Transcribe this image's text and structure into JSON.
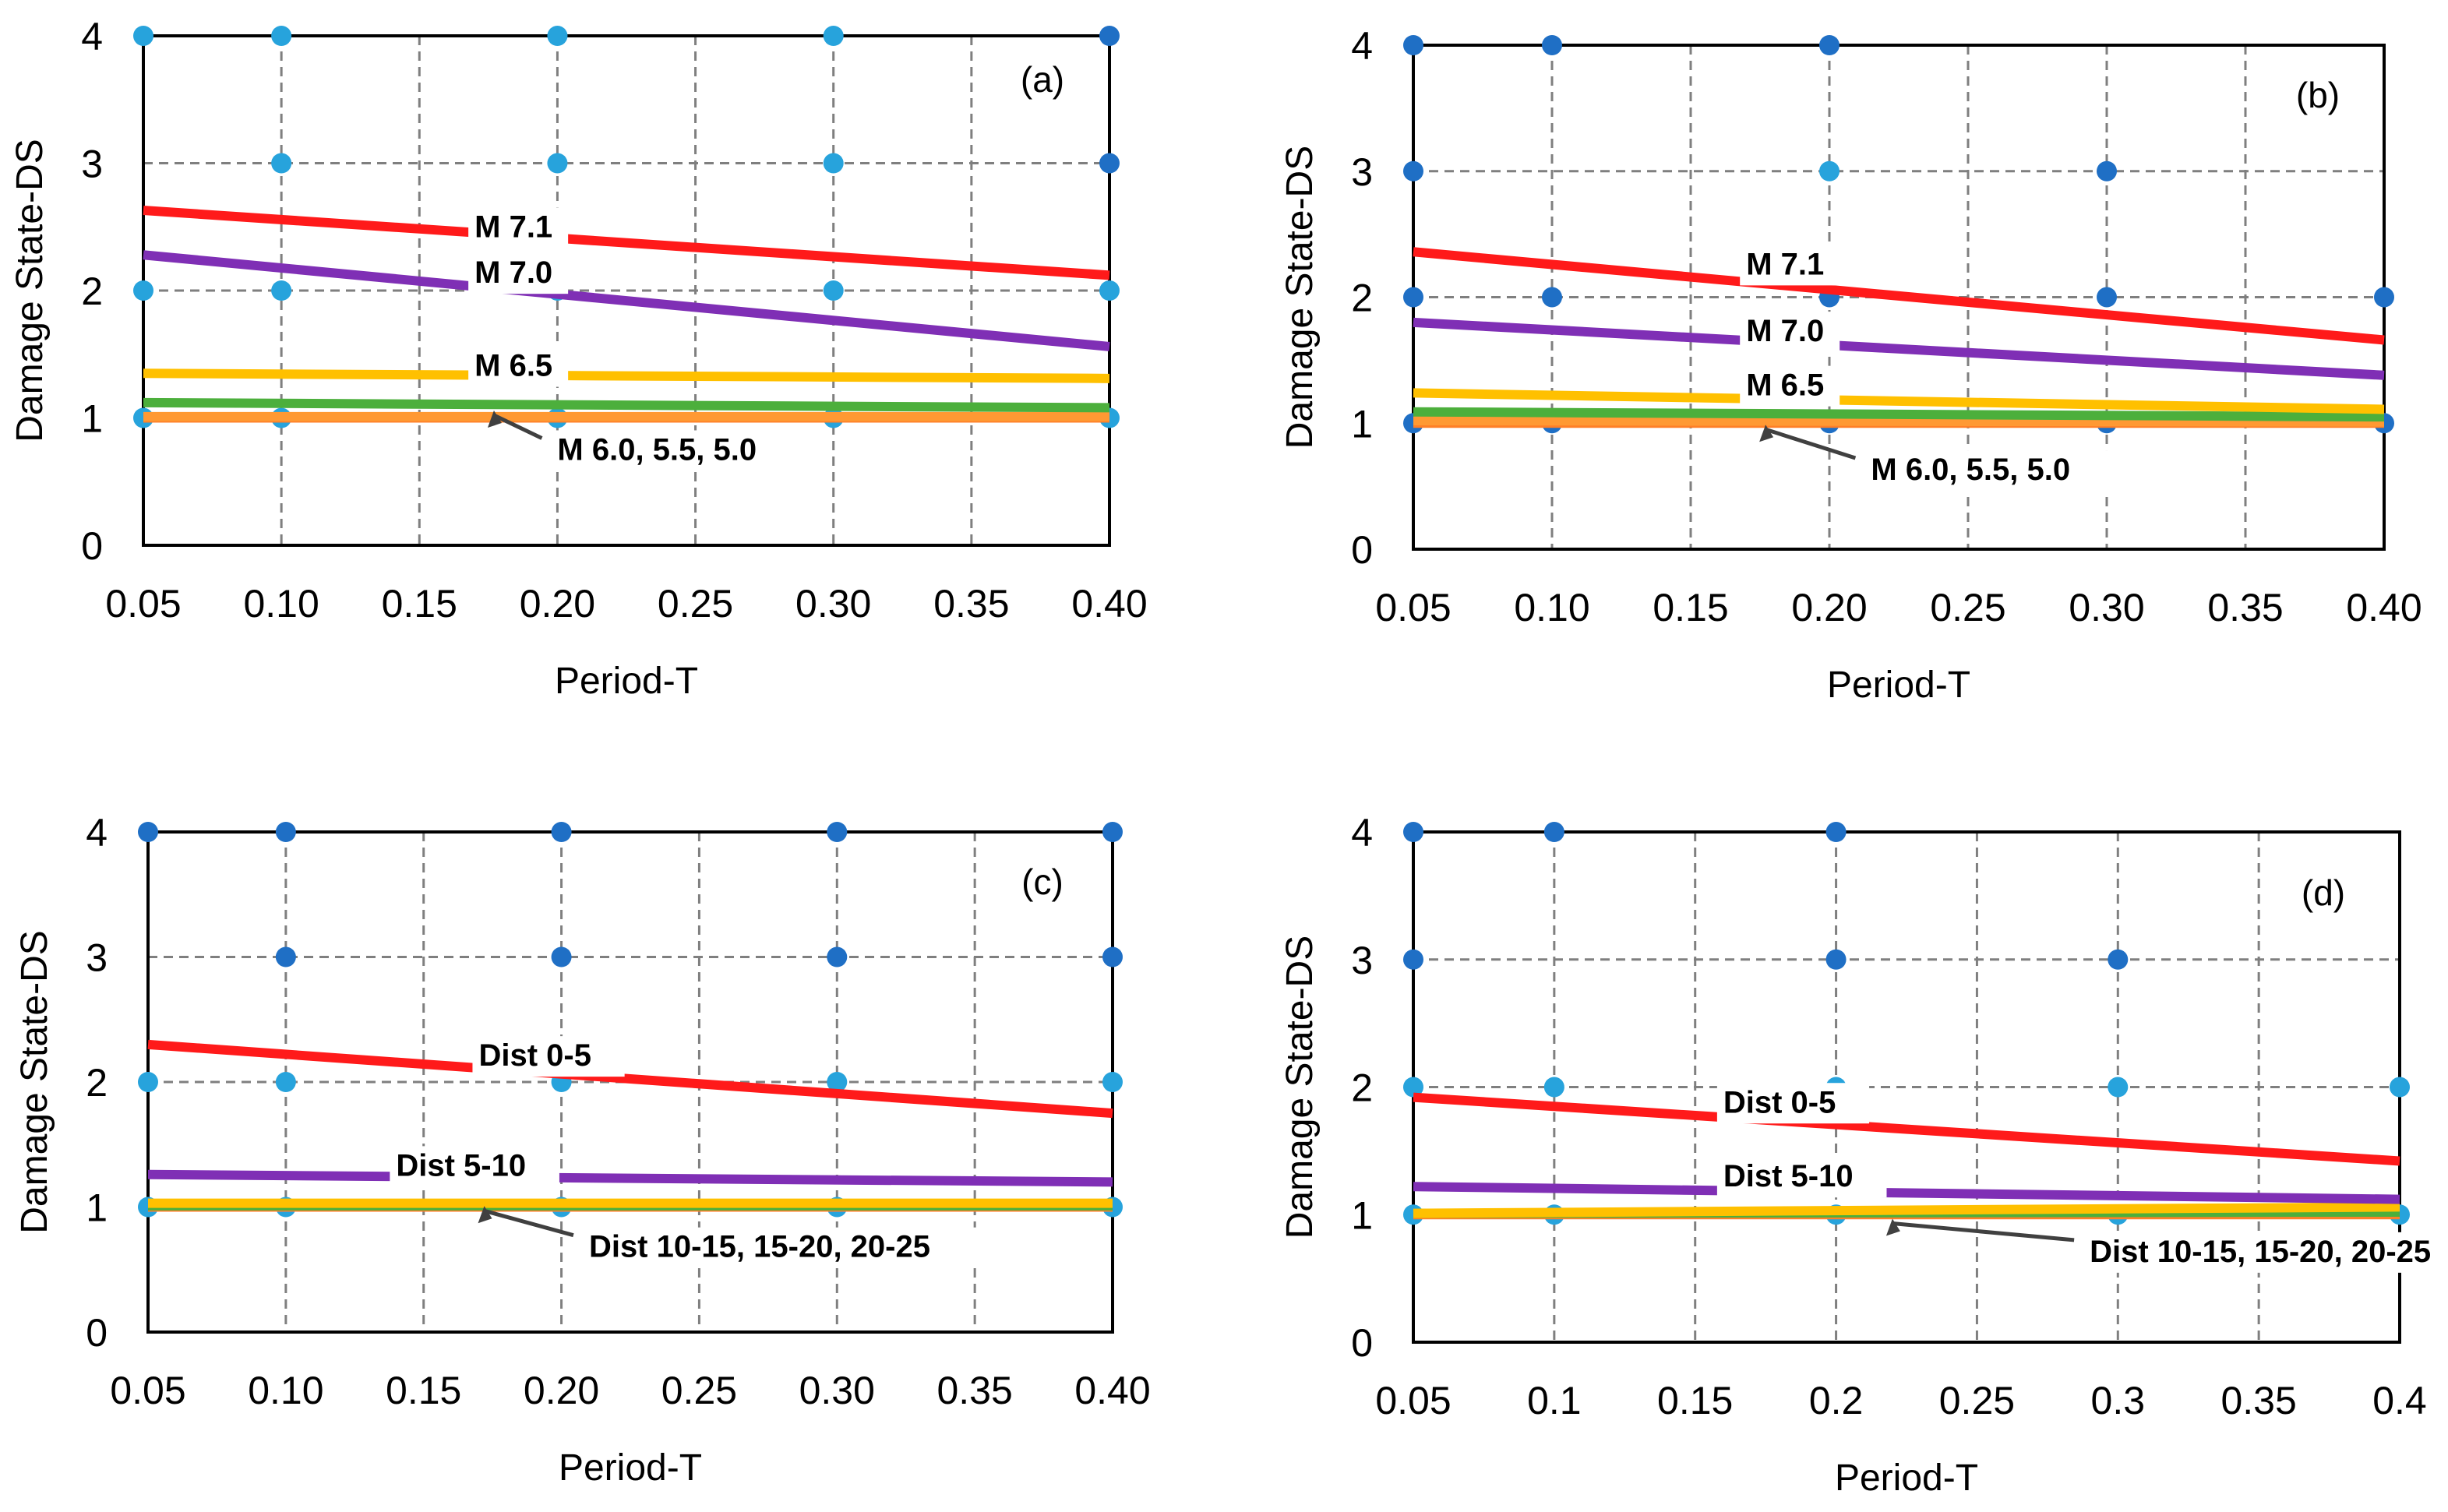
{
  "colors": {
    "M7.1": "#ff1a1a",
    "M7.0": "#7f2fb5",
    "M6.5": "#ffc000",
    "M6.0": "#4caf3c",
    "M5.5": "#ff9933",
    "M5.0": "#ff7f27",
    "Dist0-5": "#ff1a1a",
    "Dist5-10": "#7f2fb5",
    "Dist10-15": "#ffc000",
    "Dist15-20": "#4caf3c",
    "Dist20-25": "#ff7f27",
    "point_light": "#27a3dc",
    "point_dark": "#1f6fc5",
    "grid": "#7f7f7f",
    "axis": "#000000"
  },
  "chart_data": [
    {
      "type": "line",
      "panel": "(a)",
      "xlabel": "Period-T",
      "ylabel": "Damage State-DS",
      "xlim": [
        0.05,
        0.4
      ],
      "ylim": [
        0,
        4
      ],
      "xticks": [
        "0.05",
        "0.10",
        "0.15",
        "0.20",
        "0.25",
        "0.30",
        "0.35",
        "0.40"
      ],
      "xtick_values": [
        0.05,
        0.1,
        0.15,
        0.2,
        0.25,
        0.3,
        0.35,
        0.4
      ],
      "yticks": [
        "0",
        "1",
        "2",
        "3",
        "4"
      ],
      "series": [
        {
          "name": "M5.0",
          "color_key": "M5.0",
          "x": [
            0.05,
            0.4
          ],
          "y": [
            1.0,
            1.0
          ]
        },
        {
          "name": "M5.5",
          "color_key": "M5.5",
          "x": [
            0.05,
            0.4
          ],
          "y": [
            1.01,
            1.01
          ]
        },
        {
          "name": "M6.0",
          "color_key": "M6.0",
          "x": [
            0.05,
            0.4
          ],
          "y": [
            1.12,
            1.08
          ]
        },
        {
          "name": "M6.5",
          "color_key": "M6.5",
          "x": [
            0.05,
            0.4
          ],
          "y": [
            1.35,
            1.31
          ]
        },
        {
          "name": "M7.0",
          "color_key": "M7.0",
          "x": [
            0.05,
            0.4
          ],
          "y": [
            2.28,
            1.56
          ]
        },
        {
          "name": "M7.1",
          "color_key": "M7.1",
          "x": [
            0.05,
            0.4
          ],
          "y": [
            2.63,
            2.12
          ]
        }
      ],
      "points": [
        {
          "x": 0.05,
          "y": 4,
          "c": "light"
        },
        {
          "x": 0.1,
          "y": 4,
          "c": "light"
        },
        {
          "x": 0.2,
          "y": 4,
          "c": "light"
        },
        {
          "x": 0.3,
          "y": 4,
          "c": "light"
        },
        {
          "x": 0.4,
          "y": 4,
          "c": "dark"
        },
        {
          "x": 0.1,
          "y": 3,
          "c": "light"
        },
        {
          "x": 0.2,
          "y": 3,
          "c": "light"
        },
        {
          "x": 0.3,
          "y": 3,
          "c": "light"
        },
        {
          "x": 0.4,
          "y": 3,
          "c": "dark"
        },
        {
          "x": 0.05,
          "y": 2,
          "c": "light"
        },
        {
          "x": 0.1,
          "y": 2,
          "c": "light"
        },
        {
          "x": 0.2,
          "y": 2,
          "c": "light"
        },
        {
          "x": 0.3,
          "y": 2,
          "c": "light"
        },
        {
          "x": 0.4,
          "y": 2,
          "c": "light"
        },
        {
          "x": 0.05,
          "y": 1,
          "c": "light"
        },
        {
          "x": 0.1,
          "y": 1,
          "c": "light"
        },
        {
          "x": 0.2,
          "y": 1,
          "c": "light"
        },
        {
          "x": 0.3,
          "y": 1,
          "c": "light"
        },
        {
          "x": 0.4,
          "y": 1,
          "c": "light"
        }
      ],
      "annotations": [
        {
          "text": "M 7.1",
          "x": 0.17,
          "y": 2.42
        },
        {
          "text": "M 7.0",
          "x": 0.17,
          "y": 2.06
        },
        {
          "text": "M 6.5",
          "x": 0.17,
          "y": 1.33
        },
        {
          "text": "M 6.0, 5.5, 5.0",
          "x": 0.2,
          "y": 0.67,
          "arrow_to": [
            0.177,
            1.07
          ]
        }
      ]
    },
    {
      "type": "line",
      "panel": "(b)",
      "xlabel": "Period-T",
      "ylabel": "Damage State-DS",
      "xlim": [
        0.05,
        0.4
      ],
      "ylim": [
        0,
        4
      ],
      "xticks": [
        "0.05",
        "0.10",
        "0.15",
        "0.20",
        "0.25",
        "0.30",
        "0.35",
        "0.40"
      ],
      "xtick_values": [
        0.05,
        0.1,
        0.15,
        0.2,
        0.25,
        0.3,
        0.35,
        0.4
      ],
      "yticks": [
        "0",
        "1",
        "2",
        "3",
        "4"
      ],
      "series": [
        {
          "name": "M5.0",
          "color_key": "M5.0",
          "x": [
            0.05,
            0.4
          ],
          "y": [
            1.0,
            1.0
          ]
        },
        {
          "name": "M5.5",
          "color_key": "M5.5",
          "x": [
            0.05,
            0.4
          ],
          "y": [
            1.02,
            1.01
          ]
        },
        {
          "name": "M6.0",
          "color_key": "M6.0",
          "x": [
            0.05,
            0.4
          ],
          "y": [
            1.09,
            1.05
          ]
        },
        {
          "name": "M6.5",
          "color_key": "M6.5",
          "x": [
            0.05,
            0.4
          ],
          "y": [
            1.24,
            1.11
          ]
        },
        {
          "name": "M7.0",
          "color_key": "M7.0",
          "x": [
            0.05,
            0.4
          ],
          "y": [
            1.8,
            1.38
          ]
        },
        {
          "name": "M7.1",
          "color_key": "M7.1",
          "x": [
            0.05,
            0.4
          ],
          "y": [
            2.36,
            1.66
          ]
        }
      ],
      "points": [
        {
          "x": 0.05,
          "y": 4,
          "c": "dark"
        },
        {
          "x": 0.1,
          "y": 4,
          "c": "dark"
        },
        {
          "x": 0.2,
          "y": 4,
          "c": "dark"
        },
        {
          "x": 0.05,
          "y": 3,
          "c": "dark"
        },
        {
          "x": 0.2,
          "y": 3,
          "c": "light"
        },
        {
          "x": 0.3,
          "y": 3,
          "c": "dark"
        },
        {
          "x": 0.05,
          "y": 2,
          "c": "dark"
        },
        {
          "x": 0.1,
          "y": 2,
          "c": "dark"
        },
        {
          "x": 0.2,
          "y": 2,
          "c": "dark"
        },
        {
          "x": 0.3,
          "y": 2,
          "c": "dark"
        },
        {
          "x": 0.4,
          "y": 2,
          "c": "dark"
        },
        {
          "x": 0.05,
          "y": 1,
          "c": "dark"
        },
        {
          "x": 0.1,
          "y": 1,
          "c": "dark"
        },
        {
          "x": 0.2,
          "y": 1,
          "c": "dark"
        },
        {
          "x": 0.3,
          "y": 1,
          "c": "dark"
        },
        {
          "x": 0.4,
          "y": 1,
          "c": "dark"
        }
      ],
      "annotations": [
        {
          "text": "M 7.1",
          "x": 0.17,
          "y": 2.18
        },
        {
          "text": "M 7.0",
          "x": 0.17,
          "y": 1.65
        },
        {
          "text": "M 6.5",
          "x": 0.17,
          "y": 1.22
        },
        {
          "text": "M 6.0, 5.5, 5.0",
          "x": 0.215,
          "y": 0.55,
          "arrow_to": [
            0.177,
            1.0
          ]
        }
      ]
    },
    {
      "type": "line",
      "panel": "(c)",
      "xlabel": "Period-T",
      "ylabel": "Damage State-DS",
      "xlim": [
        0.05,
        0.4
      ],
      "ylim": [
        0,
        4
      ],
      "xticks": [
        "0.05",
        "0.10",
        "0.15",
        "0.20",
        "0.25",
        "0.30",
        "0.35",
        "0.40"
      ],
      "xtick_values": [
        0.05,
        0.1,
        0.15,
        0.2,
        0.25,
        0.3,
        0.35,
        0.4
      ],
      "yticks": [
        "0",
        "1",
        "2",
        "3",
        "4"
      ],
      "series": [
        {
          "name": "Dist20-25",
          "color_key": "Dist20-25",
          "x": [
            0.05,
            0.4
          ],
          "y": [
            1.0,
            1.0
          ]
        },
        {
          "name": "Dist15-20",
          "color_key": "Dist15-20",
          "x": [
            0.05,
            0.4
          ],
          "y": [
            1.01,
            1.01
          ]
        },
        {
          "name": "Dist10-15",
          "color_key": "Dist10-15",
          "x": [
            0.05,
            0.4
          ],
          "y": [
            1.03,
            1.03
          ]
        },
        {
          "name": "Dist5-10",
          "color_key": "Dist5-10",
          "x": [
            0.05,
            0.4
          ],
          "y": [
            1.26,
            1.2
          ]
        },
        {
          "name": "Dist0-5",
          "color_key": "Dist0-5",
          "x": [
            0.05,
            0.4
          ],
          "y": [
            2.3,
            1.75
          ]
        }
      ],
      "points": [
        {
          "x": 0.05,
          "y": 4,
          "c": "dark"
        },
        {
          "x": 0.1,
          "y": 4,
          "c": "dark"
        },
        {
          "x": 0.2,
          "y": 4,
          "c": "dark"
        },
        {
          "x": 0.3,
          "y": 4,
          "c": "dark"
        },
        {
          "x": 0.4,
          "y": 4,
          "c": "dark"
        },
        {
          "x": 0.1,
          "y": 3,
          "c": "dark"
        },
        {
          "x": 0.2,
          "y": 3,
          "c": "dark"
        },
        {
          "x": 0.3,
          "y": 3,
          "c": "dark"
        },
        {
          "x": 0.4,
          "y": 3,
          "c": "dark"
        },
        {
          "x": 0.05,
          "y": 2,
          "c": "light"
        },
        {
          "x": 0.1,
          "y": 2,
          "c": "light"
        },
        {
          "x": 0.2,
          "y": 2,
          "c": "light"
        },
        {
          "x": 0.3,
          "y": 2,
          "c": "light"
        },
        {
          "x": 0.4,
          "y": 2,
          "c": "light"
        },
        {
          "x": 0.05,
          "y": 1,
          "c": "light"
        },
        {
          "x": 0.1,
          "y": 1,
          "c": "light"
        },
        {
          "x": 0.2,
          "y": 1,
          "c": "light"
        },
        {
          "x": 0.3,
          "y": 1,
          "c": "light"
        },
        {
          "x": 0.4,
          "y": 1,
          "c": "light"
        }
      ],
      "annotations": [
        {
          "text": "Dist 0-5",
          "x": 0.17,
          "y": 2.13
        },
        {
          "text": "Dist 5-10",
          "x": 0.14,
          "y": 1.25
        },
        {
          "text": "Dist 10-15, 15-20, 20-25",
          "x": 0.21,
          "y": 0.6,
          "arrow_to": [
            0.172,
            1.02
          ]
        }
      ]
    },
    {
      "type": "line",
      "panel": "(d)",
      "xlabel": "Period-T",
      "ylabel": "Damage State-DS",
      "xlim": [
        0.05,
        0.4
      ],
      "ylim": [
        0,
        4
      ],
      "xticks": [
        "0.05",
        "0.1",
        "0.15",
        "0.2",
        "0.25",
        "0.3",
        "0.35",
        "0.4"
      ],
      "xtick_values": [
        0.05,
        0.1,
        0.15,
        0.2,
        0.25,
        0.3,
        0.35,
        0.4
      ],
      "yticks": [
        "0",
        "1",
        "2",
        "3",
        "4"
      ],
      "series": [
        {
          "name": "Dist20-25",
          "color_key": "Dist20-25",
          "x": [
            0.05,
            0.4
          ],
          "y": [
            1.0,
            1.0
          ]
        },
        {
          "name": "Dist15-20",
          "color_key": "Dist15-20",
          "x": [
            0.05,
            0.4
          ],
          "y": [
            1.01,
            1.02
          ]
        },
        {
          "name": "Dist10-15",
          "color_key": "Dist10-15",
          "x": [
            0.05,
            0.4
          ],
          "y": [
            1.01,
            1.06
          ]
        },
        {
          "name": "Dist5-10",
          "color_key": "Dist5-10",
          "x": [
            0.05,
            0.4
          ],
          "y": [
            1.22,
            1.12
          ]
        },
        {
          "name": "Dist0-5",
          "color_key": "Dist0-5",
          "x": [
            0.05,
            0.4
          ],
          "y": [
            1.92,
            1.42
          ]
        }
      ],
      "points": [
        {
          "x": 0.05,
          "y": 4,
          "c": "dark"
        },
        {
          "x": 0.1,
          "y": 4,
          "c": "dark"
        },
        {
          "x": 0.2,
          "y": 4,
          "c": "dark"
        },
        {
          "x": 0.05,
          "y": 3,
          "c": "dark"
        },
        {
          "x": 0.2,
          "y": 3,
          "c": "dark"
        },
        {
          "x": 0.3,
          "y": 3,
          "c": "dark"
        },
        {
          "x": 0.05,
          "y": 2,
          "c": "light"
        },
        {
          "x": 0.1,
          "y": 2,
          "c": "light"
        },
        {
          "x": 0.2,
          "y": 2,
          "c": "light"
        },
        {
          "x": 0.3,
          "y": 2,
          "c": "light"
        },
        {
          "x": 0.4,
          "y": 2,
          "c": "light"
        },
        {
          "x": 0.05,
          "y": 1,
          "c": "light"
        },
        {
          "x": 0.1,
          "y": 1,
          "c": "light"
        },
        {
          "x": 0.2,
          "y": 1,
          "c": "light"
        },
        {
          "x": 0.3,
          "y": 1,
          "c": "light"
        },
        {
          "x": 0.4,
          "y": 1,
          "c": "light"
        }
      ],
      "annotations": [
        {
          "text": "Dist 0-5",
          "x": 0.16,
          "y": 1.8
        },
        {
          "text": "Dist 5-10",
          "x": 0.16,
          "y": 1.22
        },
        {
          "text": "Dist 10-15, 15-20, 20-25",
          "x": 0.29,
          "y": 0.63,
          "arrow_to": [
            0.22,
            0.98
          ]
        }
      ]
    }
  ]
}
